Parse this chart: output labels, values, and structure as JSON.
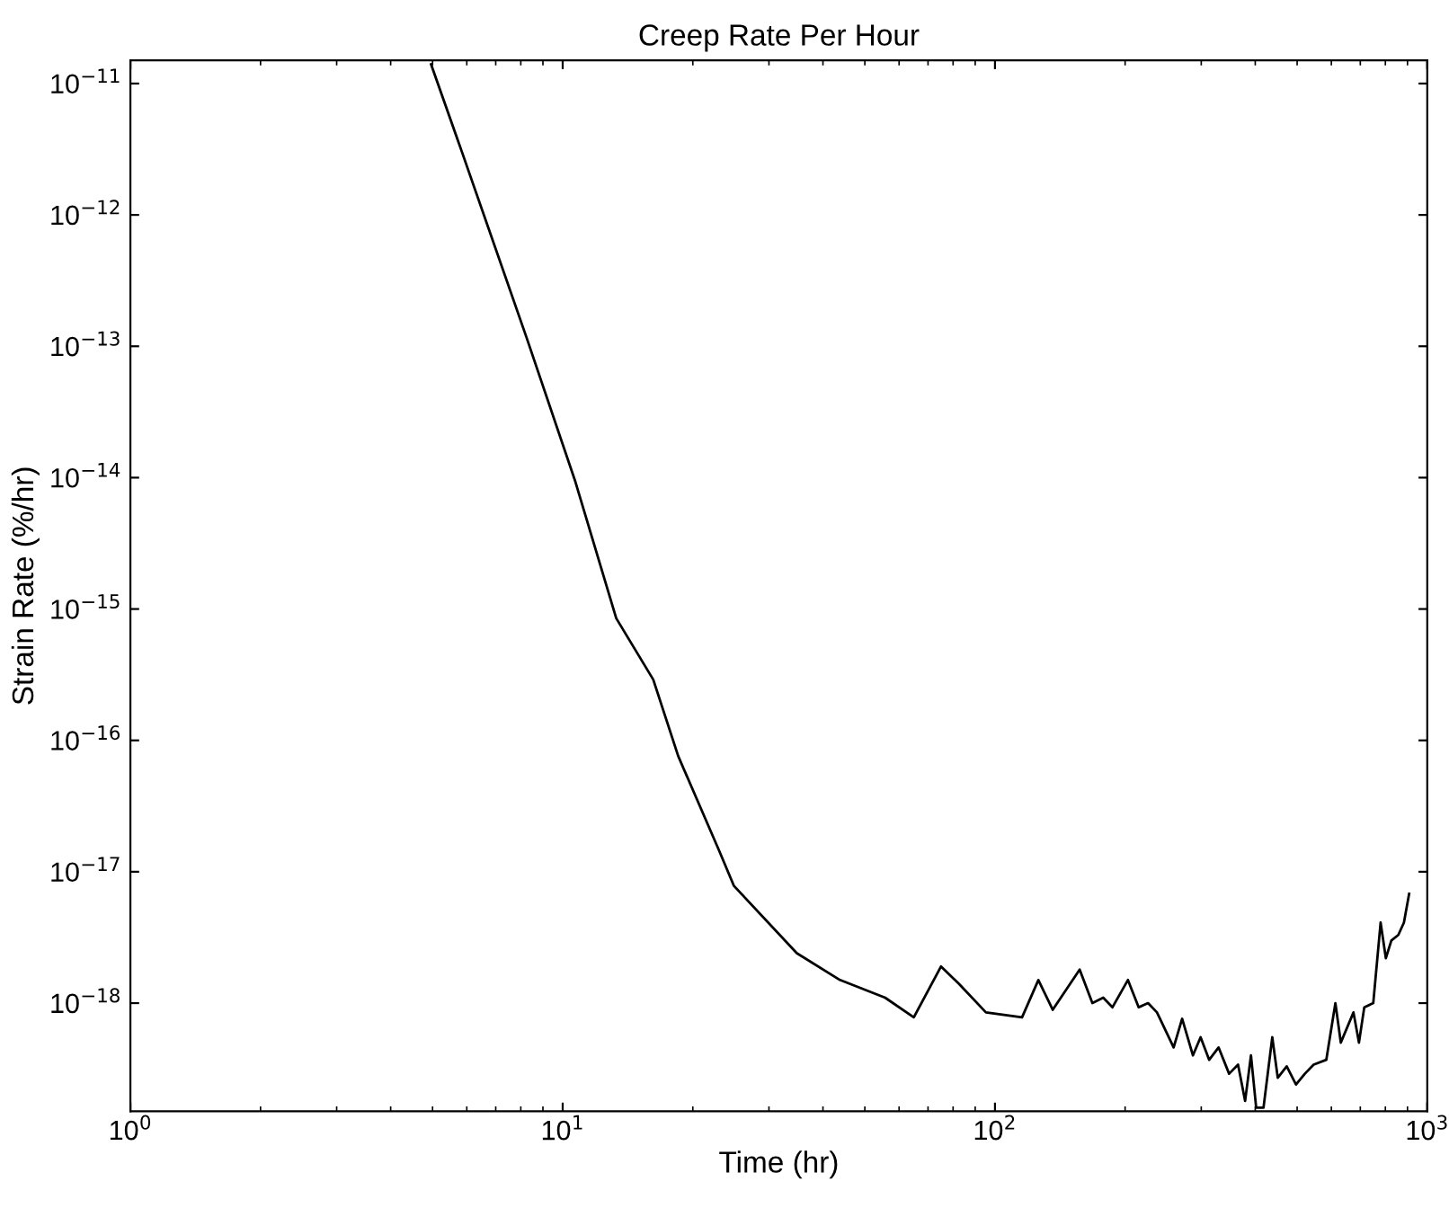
{
  "chart_data": {
    "type": "line",
    "title": "Creep Rate Per Hour",
    "xlabel": "Time (hr)",
    "ylabel": "Strain Rate (%/hr)",
    "log": "xy",
    "grid": false,
    "legend": false,
    "marker": "none",
    "line_style": "solid",
    "xlim": [
      1,
      1000
    ],
    "ylim": [
      1.5e-19,
      1.5e-11
    ],
    "xticks": [
      {
        "value": 1,
        "label": "10$^{0}$"
      },
      {
        "value": 10,
        "label": "10$^{1}$"
      },
      {
        "value": 100,
        "label": "10$^{2}$"
      },
      {
        "value": 1000,
        "label": "10$^{3}$"
      }
    ],
    "yticks": [
      {
        "value": 1e-18,
        "label": "10$^{−18}$"
      },
      {
        "value": 1e-17,
        "label": "10$^{−17}$"
      },
      {
        "value": 1e-16,
        "label": "10$^{−16}$"
      },
      {
        "value": 1e-15,
        "label": "10$^{−15}$"
      },
      {
        "value": 1e-14,
        "label": "10$^{−14}$"
      },
      {
        "value": 1e-13,
        "label": "10$^{−13}$"
      },
      {
        "value": 1e-12,
        "label": "10$^{−12}$"
      },
      {
        "value": 1e-11,
        "label": "10$^{−11}$"
      }
    ],
    "series": [
      {
        "color": "#000000",
        "x": [
          4.96,
          5.85,
          8.26,
          10.7,
          13.3,
          16.2,
          18.5,
          23.0,
          24.9,
          34.8,
          43.8,
          55.7,
          64.9,
          75.0,
          82.6,
          95.3,
          115.5,
          126,
          136,
          157,
          168,
          178,
          187,
          203,
          215,
          226,
          237,
          259,
          271,
          287,
          299,
          313,
          329,
          348,
          365,
          379,
          391,
          402,
          418,
          438,
          451,
          473,
          497,
          521,
          546,
          584,
          613,
          631,
          675,
          695,
          715,
          750,
          780,
          802,
          826,
          857,
          883,
          908
        ],
        "values": [
          1.4e-11,
          3e-12,
          1.15e-13,
          9.3e-15,
          8.5e-16,
          2.9e-16,
          7.6e-17,
          1.45e-17,
          7.8e-18,
          2.4e-18,
          1.5e-18,
          1.1e-18,
          7.8e-19,
          1.9e-18,
          1.4e-18,
          8.5e-19,
          7.8e-19,
          1.5e-18,
          8.9e-19,
          1.8e-18,
          1e-18,
          1.1e-18,
          9.3e-19,
          1.5e-18,
          9.3e-19,
          1e-18,
          8.5e-19,
          4.6e-19,
          7.6e-19,
          4e-19,
          5.5e-19,
          3.7e-19,
          4.6e-19,
          2.9e-19,
          3.4e-19,
          1.8e-19,
          4e-19,
          1.6e-19,
          1.6e-19,
          5.5e-19,
          2.7e-19,
          3.3e-19,
          2.4e-19,
          2.9e-19,
          3.4e-19,
          3.7e-19,
          1e-18,
          5e-19,
          8.5e-19,
          5e-19,
          9.3e-19,
          1e-18,
          4.1e-18,
          2.2e-18,
          3e-18,
          3.3e-18,
          4.1e-18,
          6.8e-18
        ]
      }
    ]
  }
}
